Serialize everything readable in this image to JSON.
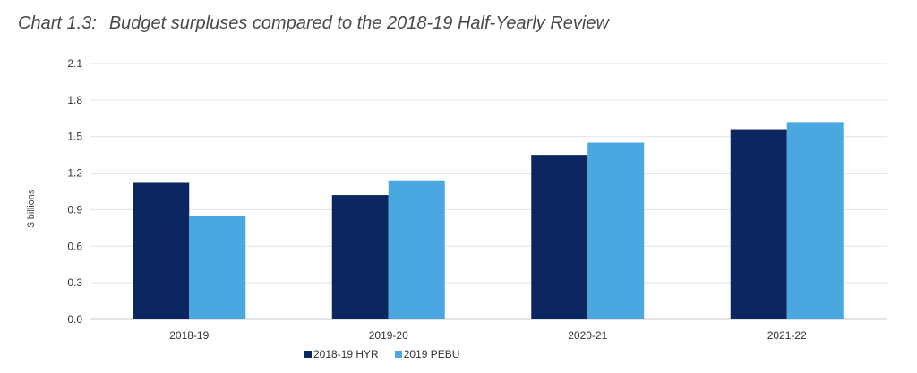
{
  "title": {
    "label": "Chart 1.3:",
    "text": "Budget surpluses compared to the 2018-19 Half-Yearly Review"
  },
  "chart_data": {
    "type": "bar",
    "categories": [
      "2018-19",
      "2019-20",
      "2020-21",
      "2021-22"
    ],
    "series": [
      {
        "name": "2018-19 HYR",
        "color": "#0b2660",
        "values": [
          1.12,
          1.02,
          1.35,
          1.56
        ]
      },
      {
        "name": "2019 PEBU",
        "color": "#4aa8e0",
        "values": [
          0.85,
          1.14,
          1.45,
          1.62
        ]
      }
    ],
    "ylabel": "$ billions",
    "xlabel": "",
    "ylim": [
      0,
      2.1
    ],
    "yticks": [
      "0.0",
      "0.3",
      "0.6",
      "0.9",
      "1.2",
      "1.5",
      "1.8",
      "2.1"
    ],
    "grid": true,
    "legend_position": "bottom"
  }
}
